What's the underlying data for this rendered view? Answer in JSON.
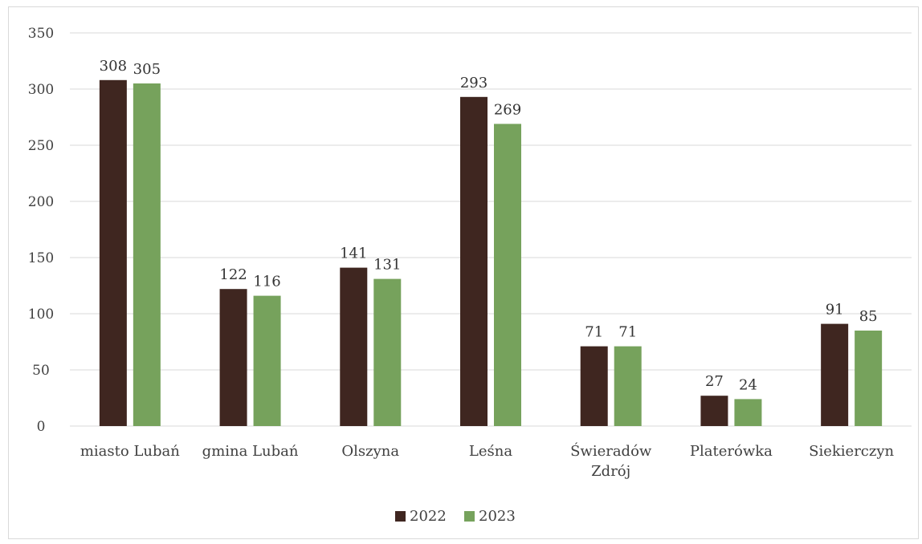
{
  "chart_data": {
    "type": "bar",
    "categories": [
      [
        "miasto Lubań"
      ],
      [
        "gmina Lubań"
      ],
      [
        "Olszyna"
      ],
      [
        "Leśna"
      ],
      [
        "Świeradów",
        "Zdrój"
      ],
      [
        "Platerówka"
      ],
      [
        "Siekierczyn"
      ]
    ],
    "series": [
      {
        "name": "2022",
        "color": "#3f2620",
        "values": [
          308,
          122,
          141,
          293,
          71,
          27,
          91
        ]
      },
      {
        "name": "2023",
        "color": "#76a25c",
        "values": [
          305,
          116,
          131,
          269,
          71,
          24,
          85
        ]
      }
    ],
    "ylim": [
      0,
      350
    ],
    "yticks": [
      0,
      50,
      100,
      150,
      200,
      250,
      300,
      350
    ],
    "grid": true,
    "legend_position": "bottom"
  }
}
